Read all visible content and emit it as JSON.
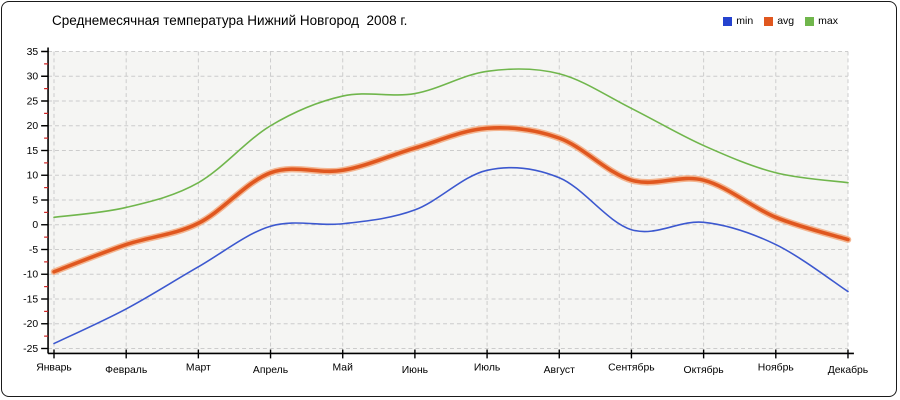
{
  "chart_data": {
    "type": "line",
    "title": "Среднемесячная температура Нижний Новгород  2008 г.",
    "categories": [
      "Январь",
      "Февраль",
      "Март",
      "Апрель",
      "Май",
      "Июнь",
      "Июль",
      "Август",
      "Сентябрь",
      "Октябрь",
      "Ноябрь",
      "Декабрь"
    ],
    "series": [
      {
        "name": "min",
        "color": "#3c58cf",
        "legend_color": "#2543cf",
        "width": 1.6,
        "values": [
          -24,
          -17,
          -8.5,
          -0.3,
          0.2,
          3,
          11,
          9.5,
          -1,
          0.5,
          -4,
          -13.5
        ]
      },
      {
        "name": "avg",
        "color": "#e0571f",
        "halo": "#f3b590",
        "width": 3.6,
        "values": [
          -9.5,
          -4,
          0.3,
          10.5,
          11,
          15.5,
          19.5,
          17.5,
          9,
          9,
          1.5,
          -3
        ]
      },
      {
        "name": "max",
        "color": "#70b64c",
        "width": 1.6,
        "values": [
          1.5,
          3.5,
          8.5,
          20,
          26,
          26.5,
          31,
          30.5,
          23.5,
          16,
          10.5,
          8.5
        ]
      }
    ],
    "xlabel": "",
    "ylabel": "",
    "ylim": [
      -25,
      35
    ],
    "ytick_step": 5,
    "y_minor_step": 2.5,
    "y_tick_labels": [
      "35",
      "30",
      "25",
      "20",
      "15",
      "10",
      "5",
      "0",
      "-5",
      "-10",
      "-15",
      "-20",
      "-25"
    ],
    "grid": true,
    "smooth": true,
    "legend_position": "top-right"
  },
  "colors": {
    "plot_bg": "#f5f5f3",
    "grid": "#cccccc",
    "axis": "#000000",
    "tick_major": "#000000",
    "tick_minor": "#cc2222",
    "text": "#000000",
    "frame_border": "#1a1a1a",
    "page_bg": "#ffffff"
  }
}
